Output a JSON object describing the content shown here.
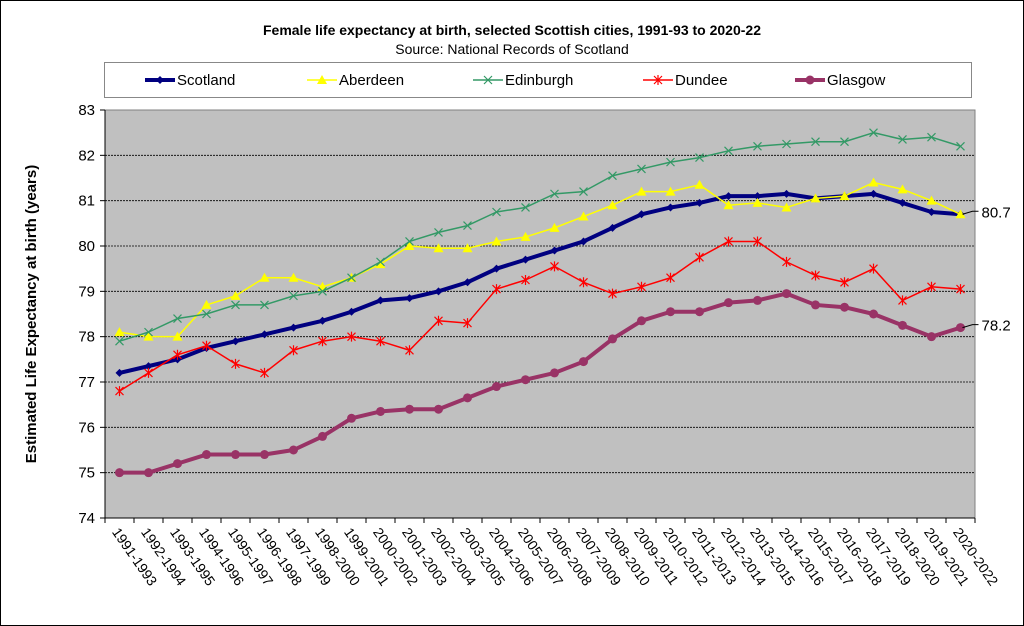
{
  "chart_data": {
    "type": "line",
    "title": "Female life expectancy at birth, selected Scottish cities, 1991-93 to 2020-22",
    "subtitle": "Source: National Records of Scotland",
    "xlabel": "",
    "ylabel": "Estimated Life Expectancy at birth (years)",
    "ylim": [
      74,
      83
    ],
    "yticks": [
      "74",
      "75",
      "76",
      "77",
      "78",
      "79",
      "80",
      "81",
      "82",
      "83"
    ],
    "grid": true,
    "legend": "top",
    "plot_background": "#c0c0c0",
    "categories": [
      "1991-1993",
      "1992-1994",
      "1993-1995",
      "1994-1996",
      "1995-1997",
      "1996-1998",
      "1997-1999",
      "1998-2000",
      "1999-2001",
      "2000-2002",
      "2001-2003",
      "2002-2004",
      "2003-2005",
      "2004-2006",
      "2005-2007",
      "2006-2008",
      "2007-2009",
      "2008-2010",
      "2009-2011",
      "2010-2012",
      "2011-2013",
      "2012-2014",
      "2013-2015",
      "2014-2016",
      "2015-2017",
      "2016-2018",
      "2017-2019",
      "2018-2020",
      "2019-2021",
      "2020-2022"
    ],
    "series": [
      {
        "name": "Scotland",
        "color": "#000080",
        "marker": "diamond",
        "width": 4,
        "values": [
          77.2,
          77.35,
          77.5,
          77.75,
          77.9,
          78.05,
          78.2,
          78.35,
          78.55,
          78.8,
          78.85,
          79.0,
          79.2,
          79.5,
          79.7,
          79.9,
          80.1,
          80.4,
          80.7,
          80.85,
          80.95,
          81.1,
          81.1,
          81.15,
          81.05,
          81.1,
          81.15,
          80.95,
          80.75,
          80.7
        ]
      },
      {
        "name": "Aberdeen",
        "color": "#ffff00",
        "marker": "triangle",
        "width": 1.5,
        "values": [
          78.1,
          78.0,
          78.0,
          78.7,
          78.9,
          79.3,
          79.3,
          79.1,
          79.3,
          79.6,
          80.0,
          79.95,
          79.95,
          80.1,
          80.2,
          80.4,
          80.65,
          80.9,
          81.2,
          81.2,
          81.35,
          80.9,
          80.95,
          80.85,
          81.05,
          81.1,
          81.4,
          81.25,
          81.0,
          80.7
        ]
      },
      {
        "name": "Edinburgh",
        "color": "#339966",
        "marker": "x",
        "width": 1.5,
        "values": [
          77.9,
          78.1,
          78.4,
          78.5,
          78.7,
          78.7,
          78.9,
          79.0,
          79.3,
          79.65,
          80.1,
          80.3,
          80.45,
          80.75,
          80.85,
          81.15,
          81.2,
          81.55,
          81.7,
          81.85,
          81.95,
          82.1,
          82.2,
          82.25,
          82.3,
          82.3,
          82.5,
          82.35,
          82.4,
          82.2
        ]
      },
      {
        "name": "Dundee",
        "color": "#ff0000",
        "marker": "star",
        "width": 1.5,
        "values": [
          76.8,
          77.2,
          77.6,
          77.8,
          77.4,
          77.2,
          77.7,
          77.9,
          78.0,
          77.9,
          77.7,
          78.35,
          78.3,
          79.05,
          79.25,
          79.55,
          79.2,
          78.95,
          79.1,
          79.3,
          79.75,
          80.1,
          80.1,
          79.65,
          79.35,
          79.2,
          79.5,
          78.8,
          79.1,
          79.05
        ]
      },
      {
        "name": "Glasgow",
        "color": "#993366",
        "marker": "circle",
        "width": 4,
        "values": [
          75.0,
          75.0,
          75.2,
          75.4,
          75.4,
          75.4,
          75.5,
          75.8,
          76.2,
          76.35,
          76.4,
          76.4,
          76.65,
          76.9,
          77.05,
          77.2,
          77.45,
          77.95,
          78.35,
          78.55,
          78.55,
          78.75,
          78.8,
          78.95,
          78.7,
          78.65,
          78.5,
          78.25,
          78.0,
          78.2
        ]
      }
    ],
    "annotations": [
      {
        "series": "Scotland",
        "category": "2020-2022",
        "text": "80.7"
      },
      {
        "series": "Glasgow",
        "category": "2020-2022",
        "text": "78.2"
      }
    ]
  }
}
